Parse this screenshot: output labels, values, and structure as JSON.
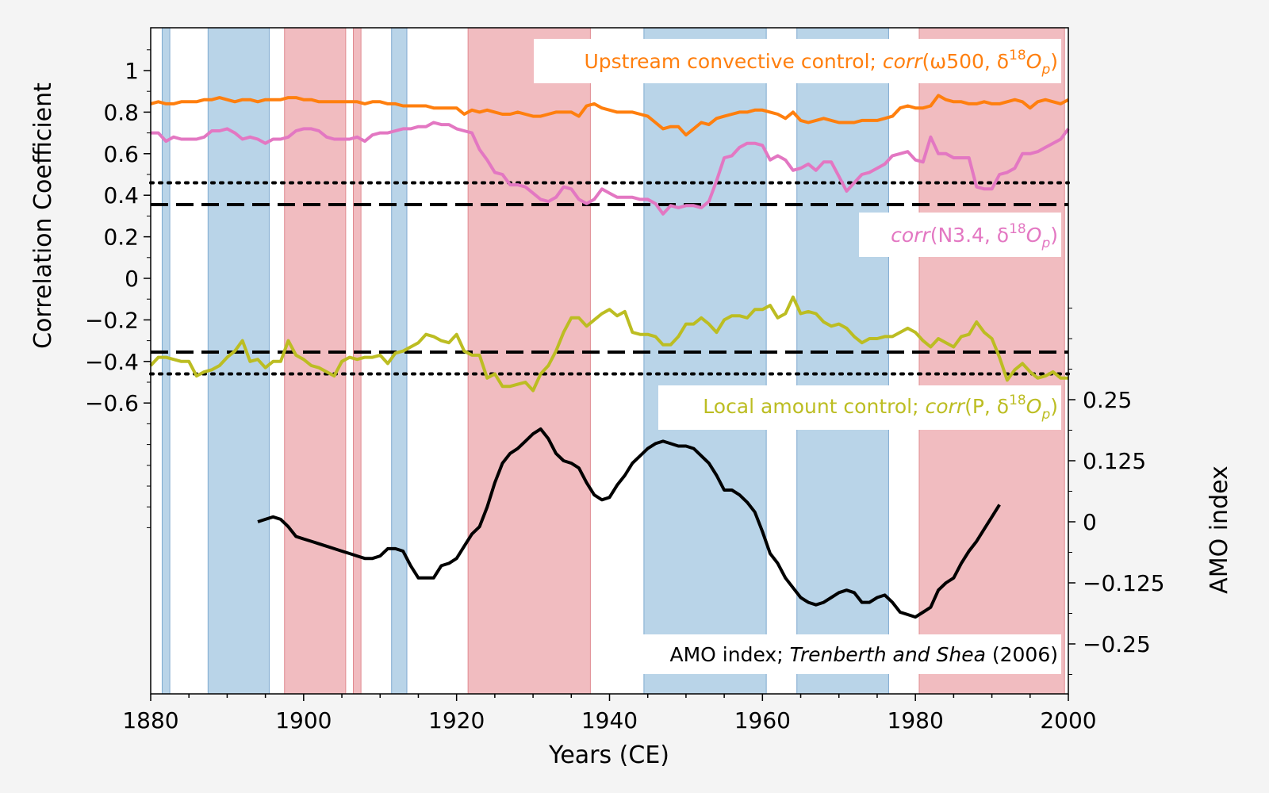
{
  "chart_data": {
    "type": "line",
    "xlabel": "Years (CE)",
    "ylabel": "Correlation Coefficient",
    "y2label": "AMO index",
    "xlim": [
      1880,
      2000
    ],
    "ylim": [
      -1.2,
      1.2
    ],
    "y2lim": [
      -0.36,
      0.36
    ],
    "grid": false,
    "x_ticks": [
      "1880",
      "1900",
      "1920",
      "1940",
      "1960",
      "1980",
      "2000"
    ],
    "y_ticks": [
      {
        "v": 1,
        "label": "1"
      },
      {
        "v": 0.8,
        "label": "0.8"
      },
      {
        "v": 0.6,
        "label": "0.6"
      },
      {
        "v": 0.4,
        "label": "0.4"
      },
      {
        "v": 0.2,
        "label": "0.2"
      },
      {
        "v": 0,
        "label": "0"
      },
      {
        "v": -0.2,
        "label": "−0.2"
      },
      {
        "v": -0.4,
        "label": "−0.4"
      },
      {
        "v": -0.6,
        "label": "−0.6"
      }
    ],
    "y2_ticks": [
      {
        "v": 0.25,
        "label": "0.25"
      },
      {
        "v": 0.125,
        "label": "0.125"
      },
      {
        "v": 0,
        "label": "0"
      },
      {
        "v": -0.125,
        "label": "−0.125"
      },
      {
        "v": -0.25,
        "label": "−0.25"
      }
    ],
    "shaded_periods": [
      {
        "start": 1881.5,
        "end": 1882.5,
        "phase": "blue"
      },
      {
        "start": 1887.5,
        "end": 1895.5,
        "phase": "blue"
      },
      {
        "start": 1897.5,
        "end": 1905.5,
        "phase": "red"
      },
      {
        "start": 1906.5,
        "end": 1907.5,
        "phase": "red"
      },
      {
        "start": 1911.5,
        "end": 1913.5,
        "phase": "blue"
      },
      {
        "start": 1921.5,
        "end": 1937.5,
        "phase": "red"
      },
      {
        "start": 1944.5,
        "end": 1960.5,
        "phase": "blue"
      },
      {
        "start": 1964.5,
        "end": 1976.5,
        "phase": "blue"
      },
      {
        "start": 1980.5,
        "end": 1999.5,
        "phase": "red"
      }
    ],
    "reference_lines": [
      {
        "y": 0.46,
        "style": "dotted"
      },
      {
        "y": 0.355,
        "style": "dashed"
      },
      {
        "y": -0.355,
        "style": "dashed"
      },
      {
        "y": -0.46,
        "style": "dotted"
      }
    ],
    "series": [
      {
        "color": "#ff7f0e",
        "axis": "left",
        "x_start": 1880,
        "x_step": 1,
        "values": [
          0.84,
          0.85,
          0.84,
          0.84,
          0.85,
          0.85,
          0.85,
          0.86,
          0.86,
          0.87,
          0.86,
          0.85,
          0.86,
          0.86,
          0.85,
          0.86,
          0.86,
          0.86,
          0.87,
          0.87,
          0.86,
          0.86,
          0.85,
          0.85,
          0.85,
          0.85,
          0.85,
          0.85,
          0.84,
          0.85,
          0.85,
          0.84,
          0.84,
          0.83,
          0.83,
          0.83,
          0.83,
          0.82,
          0.82,
          0.82,
          0.82,
          0.79,
          0.81,
          0.8,
          0.81,
          0.8,
          0.79,
          0.79,
          0.8,
          0.79,
          0.78,
          0.78,
          0.79,
          0.8,
          0.8,
          0.8,
          0.78,
          0.83,
          0.84,
          0.82,
          0.81,
          0.8,
          0.8,
          0.8,
          0.79,
          0.78,
          0.75,
          0.72,
          0.73,
          0.73,
          0.69,
          0.72,
          0.75,
          0.74,
          0.77,
          0.78,
          0.79,
          0.8,
          0.8,
          0.81,
          0.81,
          0.8,
          0.79,
          0.77,
          0.8,
          0.76,
          0.75,
          0.76,
          0.77,
          0.76,
          0.75,
          0.75,
          0.75,
          0.76,
          0.76,
          0.76,
          0.77,
          0.78,
          0.82,
          0.83,
          0.82,
          0.82,
          0.83,
          0.88,
          0.86,
          0.85,
          0.85,
          0.84,
          0.84,
          0.85,
          0.84,
          0.84,
          0.85,
          0.86,
          0.85,
          0.82,
          0.85,
          0.86,
          0.85,
          0.84,
          0.86
        ]
      },
      {
        "color": "#e377c2",
        "axis": "left",
        "x_start": 1880,
        "x_step": 1,
        "values": [
          0.7,
          0.7,
          0.66,
          0.68,
          0.67,
          0.67,
          0.67,
          0.68,
          0.71,
          0.71,
          0.72,
          0.7,
          0.67,
          0.68,
          0.67,
          0.65,
          0.67,
          0.67,
          0.68,
          0.71,
          0.72,
          0.72,
          0.71,
          0.68,
          0.67,
          0.67,
          0.67,
          0.68,
          0.66,
          0.69,
          0.7,
          0.7,
          0.71,
          0.72,
          0.72,
          0.73,
          0.73,
          0.75,
          0.74,
          0.74,
          0.72,
          0.71,
          0.7,
          0.62,
          0.57,
          0.51,
          0.5,
          0.45,
          0.45,
          0.44,
          0.41,
          0.38,
          0.37,
          0.39,
          0.44,
          0.43,
          0.38,
          0.36,
          0.38,
          0.43,
          0.41,
          0.39,
          0.39,
          0.39,
          0.38,
          0.38,
          0.36,
          0.31,
          0.35,
          0.34,
          0.35,
          0.35,
          0.34,
          0.37,
          0.47,
          0.58,
          0.59,
          0.63,
          0.65,
          0.65,
          0.64,
          0.57,
          0.59,
          0.57,
          0.52,
          0.53,
          0.55,
          0.52,
          0.56,
          0.56,
          0.49,
          0.42,
          0.46,
          0.5,
          0.51,
          0.53,
          0.55,
          0.59,
          0.6,
          0.61,
          0.57,
          0.56,
          0.68,
          0.6,
          0.6,
          0.58,
          0.58,
          0.58,
          0.44,
          0.43,
          0.43,
          0.5,
          0.51,
          0.53,
          0.6,
          0.6,
          0.61,
          0.63,
          0.65,
          0.67,
          0.72
        ]
      },
      {
        "color": "#bcbd22",
        "axis": "left",
        "x_start": 1880,
        "x_step": 1,
        "values": [
          -0.42,
          -0.38,
          -0.38,
          -0.39,
          -0.4,
          -0.4,
          -0.47,
          -0.45,
          -0.44,
          -0.42,
          -0.38,
          -0.35,
          -0.3,
          -0.4,
          -0.39,
          -0.43,
          -0.4,
          -0.4,
          -0.3,
          -0.37,
          -0.39,
          -0.42,
          -0.43,
          -0.45,
          -0.47,
          -0.4,
          -0.38,
          -0.39,
          -0.38,
          -0.38,
          -0.37,
          -0.41,
          -0.36,
          -0.35,
          -0.33,
          -0.31,
          -0.27,
          -0.28,
          -0.3,
          -0.31,
          -0.27,
          -0.35,
          -0.37,
          -0.37,
          -0.48,
          -0.46,
          -0.52,
          -0.52,
          -0.51,
          -0.5,
          -0.54,
          -0.46,
          -0.42,
          -0.35,
          -0.26,
          -0.19,
          -0.19,
          -0.23,
          -0.2,
          -0.17,
          -0.15,
          -0.18,
          -0.16,
          -0.26,
          -0.27,
          -0.27,
          -0.28,
          -0.32,
          -0.32,
          -0.28,
          -0.22,
          -0.22,
          -0.19,
          -0.22,
          -0.26,
          -0.2,
          -0.18,
          -0.18,
          -0.19,
          -0.15,
          -0.15,
          -0.13,
          -0.19,
          -0.17,
          -0.09,
          -0.17,
          -0.16,
          -0.17,
          -0.21,
          -0.23,
          -0.22,
          -0.24,
          -0.28,
          -0.31,
          -0.29,
          -0.29,
          -0.28,
          -0.28,
          -0.26,
          -0.24,
          -0.26,
          -0.3,
          -0.33,
          -0.29,
          -0.31,
          -0.33,
          -0.28,
          -0.27,
          -0.21,
          -0.26,
          -0.29,
          -0.38,
          -0.49,
          -0.44,
          -0.41,
          -0.45,
          -0.48,
          -0.47,
          -0.45,
          -0.48,
          -0.48
        ]
      },
      {
        "color": "#000000",
        "axis": "right",
        "x_start": 1894,
        "x_step": 1,
        "values": [
          0.0,
          0.005,
          0.01,
          0.005,
          -0.01,
          -0.03,
          -0.035,
          -0.04,
          -0.045,
          -0.05,
          -0.055,
          -0.06,
          -0.065,
          -0.07,
          -0.075,
          -0.075,
          -0.07,
          -0.055,
          -0.055,
          -0.06,
          -0.09,
          -0.115,
          -0.115,
          -0.115,
          -0.09,
          -0.085,
          -0.075,
          -0.05,
          -0.025,
          -0.01,
          0.03,
          0.08,
          0.12,
          0.14,
          0.15,
          0.165,
          0.18,
          0.19,
          0.17,
          0.14,
          0.125,
          0.12,
          0.11,
          0.08,
          0.055,
          0.045,
          0.05,
          0.075,
          0.095,
          0.12,
          0.135,
          0.15,
          0.16,
          0.165,
          0.16,
          0.155,
          0.155,
          0.15,
          0.135,
          0.12,
          0.095,
          0.065,
          0.065,
          0.055,
          0.04,
          0.02,
          -0.02,
          -0.065,
          -0.085,
          -0.115,
          -0.135,
          -0.155,
          -0.165,
          -0.17,
          -0.165,
          -0.155,
          -0.145,
          -0.14,
          -0.145,
          -0.165,
          -0.165,
          -0.155,
          -0.15,
          -0.165,
          -0.185,
          -0.19,
          -0.195,
          -0.185,
          -0.175,
          -0.14,
          -0.125,
          -0.115,
          -0.085,
          -0.06,
          -0.04,
          -0.015,
          0.01,
          0.035
        ]
      }
    ],
    "annotations": [
      {
        "prefix": "Upstream convective control; ",
        "italic": "corr",
        "rest": "(ω500, δ",
        "sup": "18",
        "sub_base": "O",
        "sub": "p",
        "close": ")",
        "color": "#ff7f0e"
      },
      {
        "prefix": "",
        "italic": "corr",
        "rest": "(N3.4,  δ",
        "sup": "18",
        "sub_base": "O",
        "sub": "p",
        "close": ")",
        "color": "#e377c2"
      },
      {
        "prefix": "Local amount control; ",
        "italic": "corr",
        "rest": "(P, δ",
        "sup": "18",
        "sub_base": "O",
        "sub": "p",
        "close": ")",
        "color": "#bcbd22"
      },
      {
        "prefix": "AMO index; ",
        "italic": "Trenberth and Shea",
        "rest": " (2006)",
        "sup": "",
        "sub_base": "",
        "sub": "",
        "close": "",
        "color": "#000000"
      }
    ],
    "colors": {
      "blue_shade": "#b9d4e8",
      "blue_edge": "#7faad0",
      "red_shade": "#f1bcc0",
      "red_edge": "#e08a90"
    }
  }
}
